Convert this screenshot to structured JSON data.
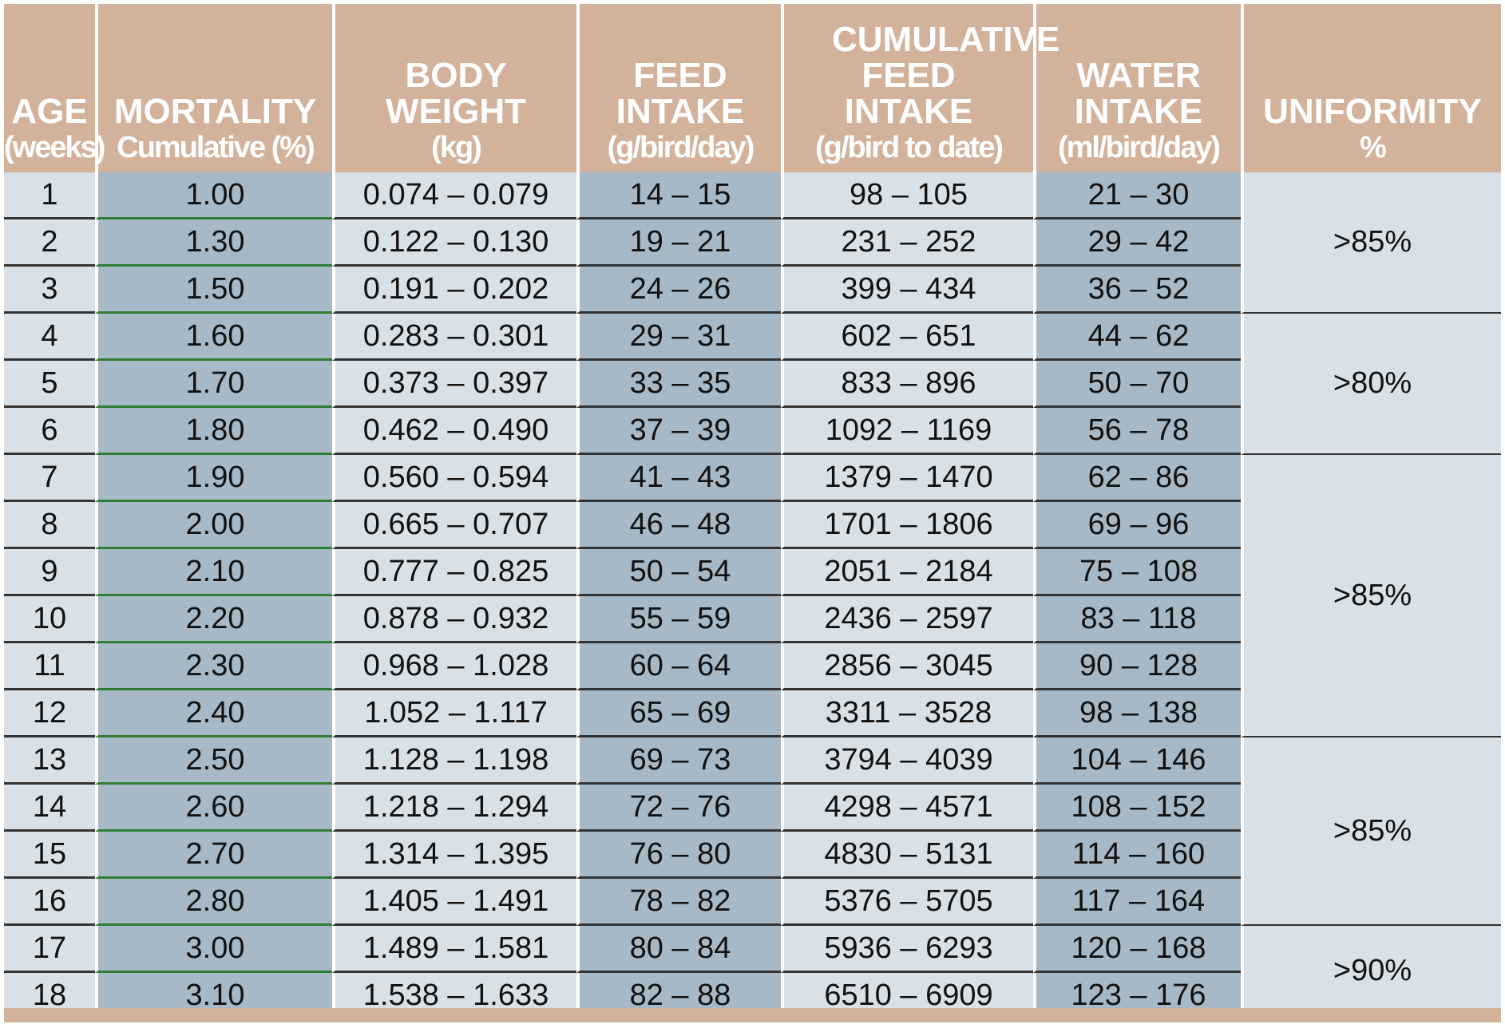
{
  "headers": [
    {
      "main": "AGE",
      "sub": "(weeks)"
    },
    {
      "main": "MORTALITY",
      "sub": "Cumulative (%)"
    },
    {
      "main": "BODY WEIGHT",
      "sub": "(kg)"
    },
    {
      "main": "FEED INTAKE",
      "sub": "(g/bird/day)"
    },
    {
      "main": "CUMULATIVE FEED INTAKE",
      "sub": "(g/bird to date)"
    },
    {
      "main": "WATER INTAKE",
      "sub": "(ml/bird/day)"
    },
    {
      "main": "UNIFORMITY",
      "sub": "%"
    }
  ],
  "rows": [
    {
      "age": "1",
      "mortality": "1.00",
      "body_weight": "0.074 – 0.079",
      "feed": "14 – 15",
      "cumulative": "98 – 105",
      "water": "21 – 30"
    },
    {
      "age": "2",
      "mortality": "1.30",
      "body_weight": "0.122 – 0.130",
      "feed": "19 – 21",
      "cumulative": "231 – 252",
      "water": "29 – 42"
    },
    {
      "age": "3",
      "mortality": "1.50",
      "body_weight": "0.191 – 0.202",
      "feed": "24 – 26",
      "cumulative": "399 – 434",
      "water": "36 – 52"
    },
    {
      "age": "4",
      "mortality": "1.60",
      "body_weight": "0.283 – 0.301",
      "feed": "29 – 31",
      "cumulative": "602 – 651",
      "water": "44 – 62"
    },
    {
      "age": "5",
      "mortality": "1.70",
      "body_weight": "0.373 – 0.397",
      "feed": "33 – 35",
      "cumulative": "833 – 896",
      "water": "50 – 70"
    },
    {
      "age": "6",
      "mortality": "1.80",
      "body_weight": "0.462 – 0.490",
      "feed": "37 – 39",
      "cumulative": "1092 – 1169",
      "water": "56 – 78"
    },
    {
      "age": "7",
      "mortality": "1.90",
      "body_weight": "0.560 – 0.594",
      "feed": "41 – 43",
      "cumulative": "1379 – 1470",
      "water": "62 – 86"
    },
    {
      "age": "8",
      "mortality": "2.00",
      "body_weight": "0.665 – 0.707",
      "feed": "46 – 48",
      "cumulative": "1701 – 1806",
      "water": "69 – 96"
    },
    {
      "age": "9",
      "mortality": "2.10",
      "body_weight": "0.777 – 0.825",
      "feed": "50 – 54",
      "cumulative": "2051 – 2184",
      "water": "75 – 108"
    },
    {
      "age": "10",
      "mortality": "2.20",
      "body_weight": "0.878 – 0.932",
      "feed": "55 – 59",
      "cumulative": "2436 – 2597",
      "water": "83 – 118"
    },
    {
      "age": "11",
      "mortality": "2.30",
      "body_weight": "0.968 – 1.028",
      "feed": "60 – 64",
      "cumulative": "2856 – 3045",
      "water": "90 – 128"
    },
    {
      "age": "12",
      "mortality": "2.40",
      "body_weight": "1.052 – 1.117",
      "feed": "65 – 69",
      "cumulative": "3311 – 3528",
      "water": "98 – 138"
    },
    {
      "age": "13",
      "mortality": "2.50",
      "body_weight": "1.128 – 1.198",
      "feed": "69 – 73",
      "cumulative": "3794 – 4039",
      "water": "104 – 146"
    },
    {
      "age": "14",
      "mortality": "2.60",
      "body_weight": "1.218 – 1.294",
      "feed": "72 – 76",
      "cumulative": "4298 – 4571",
      "water": "108 – 152"
    },
    {
      "age": "15",
      "mortality": "2.70",
      "body_weight": "1.314 – 1.395",
      "feed": "76 – 80",
      "cumulative": "4830 – 5131",
      "water": "114 – 160"
    },
    {
      "age": "16",
      "mortality": "2.80",
      "body_weight": "1.405 – 1.491",
      "feed": "78 – 82",
      "cumulative": "5376 – 5705",
      "water": "117 – 164"
    },
    {
      "age": "17",
      "mortality": "3.00",
      "body_weight": "1.489 – 1.581",
      "feed": "80 – 84",
      "cumulative": "5936 – 6293",
      "water": "120 – 168"
    },
    {
      "age": "18",
      "mortality": "3.10",
      "body_weight": "1.538 – 1.633",
      "feed": "82 – 88",
      "cumulative": "6510 – 6909",
      "water": "123 – 176"
    }
  ],
  "uniformity_groups": [
    {
      "value": ">85%",
      "span": 3
    },
    {
      "value": ">80%",
      "span": 3
    },
    {
      "value": ">85%",
      "span": 6
    },
    {
      "value": ">85%",
      "span": 4
    },
    {
      "value": ">90%",
      "span": 2
    }
  ],
  "colors": {
    "header": "#d3b29c",
    "light_cell": "#d8e1e8",
    "dark_cell": "#a7b9c6"
  }
}
